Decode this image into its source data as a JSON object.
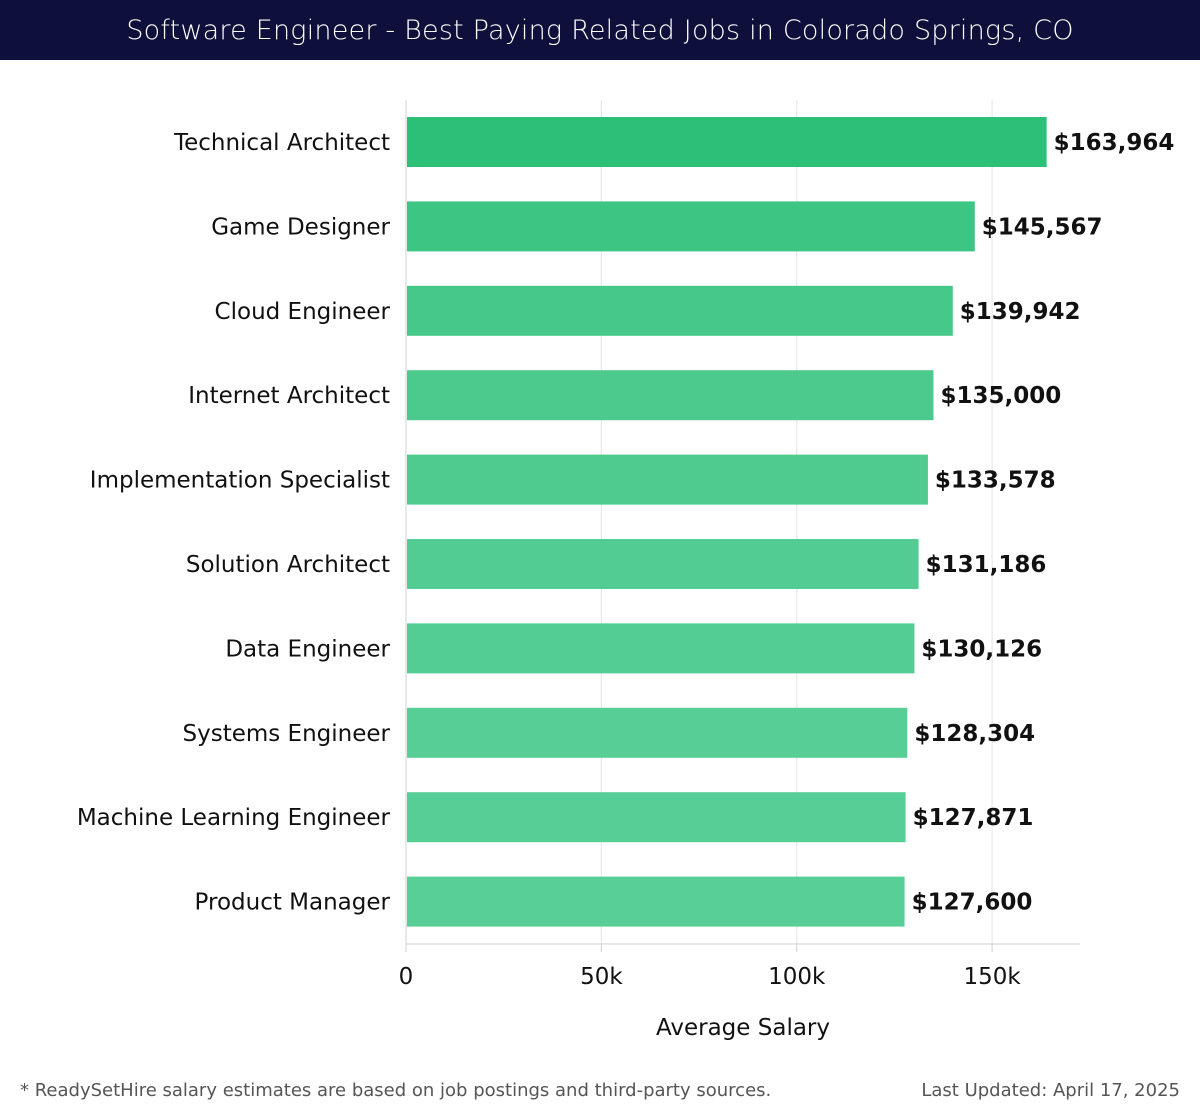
{
  "header": {
    "title": "Software Engineer - Best Paying Related Jobs in Colorado Springs, CO"
  },
  "chart_data": {
    "type": "bar",
    "orientation": "horizontal",
    "title": "Software Engineer - Best Paying Related Jobs in Colorado Springs, CO",
    "xlabel": "Average Salary",
    "ylabel": "",
    "xlim": [
      0,
      172500
    ],
    "xticks": [
      0,
      50000,
      100000,
      150000
    ],
    "xtick_labels": [
      "0",
      "50k",
      "100k",
      "150k"
    ],
    "grid": true,
    "categories": [
      "Technical Architect",
      "Game Designer",
      "Cloud Engineer",
      "Internet Architect",
      "Implementation Specialist",
      "Solution Architect",
      "Data Engineer",
      "Systems Engineer",
      "Machine Learning Engineer",
      "Product Manager"
    ],
    "values": [
      163964,
      145567,
      139942,
      135000,
      133578,
      131186,
      130126,
      128304,
      127871,
      127600
    ],
    "value_labels": [
      "$163,964",
      "$145,567",
      "$139,942",
      "$135,000",
      "$133,578",
      "$131,186",
      "$130,126",
      "$128,304",
      "$127,871",
      "$127,600"
    ],
    "colors": [
      "#2bbf78",
      "#3cc583",
      "#46c88a",
      "#4cca8e",
      "#4fcb90",
      "#52cc93",
      "#54cd94",
      "#56ce96",
      "#58ce97",
      "#59cf98"
    ]
  },
  "footer": {
    "note": "* ReadySetHire salary estimates are based on job postings and third-party sources.",
    "updated": "Last Updated: April 17, 2025"
  }
}
